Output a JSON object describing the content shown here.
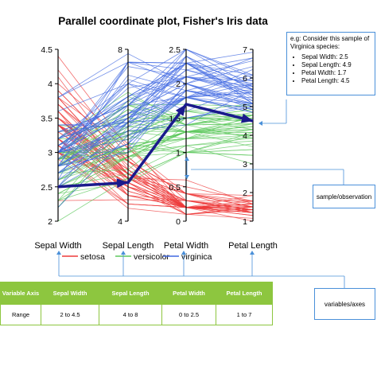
{
  "chart_data": {
    "type": "line",
    "subtype": "parallel-coordinates",
    "title": "Parallel coordinate plot, Fisher's Iris data",
    "axes": [
      {
        "name": "Sepal Width",
        "min": 2,
        "max": 4.5,
        "ticks": [
          "2",
          "2.5",
          "3",
          "3.5",
          "4",
          "4.5"
        ]
      },
      {
        "name": "Sepal Length",
        "min": 4,
        "max": 8,
        "ticks": [
          "4",
          "8"
        ]
      },
      {
        "name": "Petal Width",
        "min": 0,
        "max": 2.5,
        "ticks": [
          "0",
          "0.5",
          "1",
          "1.5",
          "2",
          "2.5"
        ]
      },
      {
        "name": "Petal Length",
        "min": 1,
        "max": 7,
        "ticks": [
          "1",
          "2",
          "3",
          "4",
          "5",
          "6",
          "7"
        ]
      }
    ],
    "series": [
      {
        "name": "setosa",
        "color": "#ee3b3b",
        "values": [
          [
            3.5,
            5.1,
            0.2,
            1.4
          ],
          [
            3.0,
            4.9,
            0.2,
            1.4
          ],
          [
            3.2,
            4.7,
            0.2,
            1.3
          ],
          [
            3.1,
            4.6,
            0.2,
            1.5
          ],
          [
            3.6,
            5.0,
            0.2,
            1.4
          ],
          [
            3.9,
            5.4,
            0.4,
            1.7
          ],
          [
            3.4,
            4.6,
            0.3,
            1.4
          ],
          [
            3.4,
            5.0,
            0.2,
            1.5
          ],
          [
            2.9,
            4.4,
            0.2,
            1.4
          ],
          [
            3.1,
            4.9,
            0.1,
            1.5
          ],
          [
            3.7,
            5.4,
            0.2,
            1.5
          ],
          [
            3.4,
            4.8,
            0.2,
            1.6
          ],
          [
            3.0,
            4.8,
            0.1,
            1.4
          ],
          [
            3.0,
            4.3,
            0.1,
            1.1
          ],
          [
            4.0,
            5.8,
            0.2,
            1.2
          ],
          [
            4.4,
            5.7,
            0.4,
            1.5
          ],
          [
            3.9,
            5.4,
            0.4,
            1.3
          ],
          [
            3.5,
            5.1,
            0.3,
            1.4
          ],
          [
            3.8,
            5.7,
            0.3,
            1.7
          ],
          [
            3.8,
            5.1,
            0.3,
            1.5
          ],
          [
            3.4,
            5.4,
            0.2,
            1.7
          ],
          [
            3.7,
            5.1,
            0.4,
            1.5
          ],
          [
            3.6,
            4.6,
            0.2,
            1.0
          ],
          [
            3.3,
            5.1,
            0.5,
            1.7
          ],
          [
            3.4,
            4.8,
            0.2,
            1.9
          ],
          [
            3.0,
            5.0,
            0.2,
            1.6
          ],
          [
            3.4,
            5.0,
            0.4,
            1.6
          ],
          [
            3.5,
            5.2,
            0.2,
            1.5
          ],
          [
            3.4,
            5.2,
            0.2,
            1.4
          ],
          [
            3.2,
            4.7,
            0.2,
            1.6
          ],
          [
            3.1,
            4.8,
            0.2,
            1.6
          ],
          [
            3.4,
            5.4,
            0.4,
            1.5
          ],
          [
            4.1,
            5.2,
            0.1,
            1.5
          ],
          [
            4.2,
            5.5,
            0.2,
            1.4
          ],
          [
            3.1,
            4.9,
            0.2,
            1.5
          ],
          [
            3.2,
            5.0,
            0.2,
            1.2
          ],
          [
            3.5,
            5.5,
            0.2,
            1.3
          ],
          [
            3.6,
            4.9,
            0.1,
            1.4
          ],
          [
            3.0,
            4.4,
            0.2,
            1.3
          ],
          [
            3.4,
            5.1,
            0.2,
            1.5
          ],
          [
            3.5,
            5.0,
            0.3,
            1.3
          ],
          [
            2.3,
            4.5,
            0.3,
            1.3
          ],
          [
            3.2,
            4.4,
            0.2,
            1.3
          ],
          [
            3.5,
            5.0,
            0.6,
            1.6
          ],
          [
            3.8,
            5.1,
            0.4,
            1.9
          ],
          [
            3.0,
            4.8,
            0.3,
            1.4
          ],
          [
            3.8,
            5.1,
            0.2,
            1.6
          ],
          [
            3.2,
            4.6,
            0.2,
            1.4
          ],
          [
            3.7,
            5.3,
            0.2,
            1.5
          ],
          [
            3.3,
            5.0,
            0.2,
            1.4
          ]
        ]
      },
      {
        "name": "versicolor",
        "color": "#5ec85e",
        "values": [
          [
            3.2,
            7.0,
            1.4,
            4.7
          ],
          [
            3.2,
            6.4,
            1.5,
            4.5
          ],
          [
            3.1,
            6.9,
            1.5,
            4.9
          ],
          [
            2.3,
            5.5,
            1.3,
            4.0
          ],
          [
            2.8,
            6.5,
            1.5,
            4.6
          ],
          [
            2.8,
            5.7,
            1.3,
            4.5
          ],
          [
            3.3,
            6.3,
            1.6,
            4.7
          ],
          [
            2.4,
            4.9,
            1.0,
            3.3
          ],
          [
            2.9,
            6.6,
            1.3,
            4.6
          ],
          [
            2.7,
            5.2,
            1.4,
            3.9
          ],
          [
            2.0,
            5.0,
            1.0,
            3.5
          ],
          [
            3.0,
            5.9,
            1.5,
            4.2
          ],
          [
            2.2,
            6.0,
            1.0,
            4.0
          ],
          [
            2.9,
            6.1,
            1.4,
            4.7
          ],
          [
            2.9,
            5.6,
            1.3,
            3.6
          ],
          [
            3.1,
            6.7,
            1.4,
            4.4
          ],
          [
            3.0,
            5.6,
            1.5,
            4.5
          ],
          [
            2.7,
            5.8,
            1.0,
            4.1
          ],
          [
            2.2,
            6.2,
            1.5,
            4.5
          ],
          [
            2.5,
            5.6,
            1.1,
            3.9
          ],
          [
            3.2,
            5.9,
            1.8,
            4.8
          ],
          [
            2.8,
            6.1,
            1.3,
            4.0
          ],
          [
            2.5,
            6.3,
            1.5,
            4.9
          ],
          [
            2.8,
            6.1,
            1.2,
            4.7
          ],
          [
            2.9,
            6.4,
            1.3,
            4.3
          ],
          [
            3.0,
            6.6,
            1.4,
            4.4
          ],
          [
            2.8,
            6.8,
            1.4,
            4.8
          ],
          [
            3.0,
            6.7,
            1.7,
            5.0
          ],
          [
            2.9,
            6.0,
            1.5,
            4.5
          ],
          [
            2.6,
            5.7,
            1.0,
            3.5
          ],
          [
            2.4,
            5.5,
            1.1,
            3.8
          ],
          [
            2.4,
            5.5,
            1.0,
            3.7
          ],
          [
            2.7,
            5.8,
            1.2,
            3.9
          ],
          [
            2.7,
            6.0,
            1.6,
            5.1
          ],
          [
            3.0,
            5.4,
            1.5,
            4.5
          ],
          [
            3.4,
            6.0,
            1.6,
            4.5
          ],
          [
            3.1,
            6.7,
            1.5,
            4.7
          ],
          [
            2.3,
            6.3,
            1.3,
            4.4
          ],
          [
            3.0,
            5.6,
            1.3,
            4.1
          ],
          [
            2.5,
            5.5,
            1.3,
            4.0
          ],
          [
            2.6,
            5.5,
            1.2,
            4.4
          ],
          [
            3.0,
            6.1,
            1.4,
            4.6
          ],
          [
            2.6,
            5.8,
            1.2,
            4.0
          ],
          [
            2.3,
            5.0,
            1.0,
            3.3
          ],
          [
            2.7,
            5.6,
            1.3,
            4.2
          ],
          [
            3.0,
            5.7,
            1.2,
            4.2
          ],
          [
            2.9,
            5.7,
            1.3,
            4.2
          ],
          [
            2.9,
            6.2,
            1.3,
            4.3
          ],
          [
            2.5,
            5.1,
            1.1,
            3.0
          ],
          [
            2.8,
            5.7,
            1.3,
            4.1
          ]
        ]
      },
      {
        "name": "virginica",
        "color": "#4169e1",
        "values": [
          [
            3.3,
            6.3,
            2.5,
            6.0
          ],
          [
            2.7,
            5.8,
            1.9,
            5.1
          ],
          [
            3.0,
            7.1,
            2.1,
            5.9
          ],
          [
            2.9,
            6.3,
            1.8,
            5.6
          ],
          [
            3.0,
            6.5,
            2.2,
            5.8
          ],
          [
            3.0,
            7.6,
            2.1,
            6.6
          ],
          [
            2.5,
            4.9,
            1.7,
            4.5
          ],
          [
            2.9,
            7.3,
            1.8,
            6.3
          ],
          [
            2.5,
            6.7,
            1.8,
            5.8
          ],
          [
            3.6,
            7.2,
            2.5,
            6.1
          ],
          [
            3.2,
            6.5,
            2.0,
            5.1
          ],
          [
            2.7,
            6.4,
            1.9,
            5.3
          ],
          [
            3.0,
            6.8,
            2.1,
            5.5
          ],
          [
            2.5,
            5.7,
            2.0,
            5.0
          ],
          [
            2.8,
            5.8,
            2.4,
            5.1
          ],
          [
            3.2,
            6.4,
            2.3,
            5.3
          ],
          [
            3.0,
            6.5,
            1.8,
            5.5
          ],
          [
            3.8,
            7.7,
            2.2,
            6.7
          ],
          [
            2.6,
            7.7,
            2.3,
            6.9
          ],
          [
            2.2,
            6.0,
            1.5,
            5.0
          ],
          [
            3.2,
            6.9,
            2.3,
            5.7
          ],
          [
            2.8,
            5.6,
            2.0,
            4.9
          ],
          [
            2.8,
            7.7,
            2.0,
            6.7
          ],
          [
            2.7,
            6.3,
            1.8,
            4.9
          ],
          [
            3.3,
            6.7,
            2.1,
            5.7
          ],
          [
            3.2,
            7.2,
            1.8,
            6.0
          ],
          [
            2.8,
            6.2,
            1.8,
            4.8
          ],
          [
            3.0,
            6.1,
            1.8,
            4.9
          ],
          [
            2.8,
            6.4,
            2.1,
            5.6
          ],
          [
            3.0,
            7.2,
            1.6,
            5.8
          ],
          [
            2.8,
            7.4,
            1.9,
            6.1
          ],
          [
            3.8,
            7.9,
            2.0,
            6.4
          ],
          [
            2.8,
            6.4,
            2.2,
            5.6
          ],
          [
            2.8,
            6.3,
            1.5,
            5.1
          ],
          [
            2.6,
            6.1,
            1.4,
            5.6
          ],
          [
            3.0,
            7.7,
            2.3,
            6.1
          ],
          [
            3.4,
            6.3,
            2.4,
            5.6
          ],
          [
            3.1,
            6.4,
            1.8,
            5.5
          ],
          [
            3.0,
            6.0,
            1.8,
            4.8
          ],
          [
            3.1,
            6.9,
            2.1,
            5.4
          ],
          [
            3.1,
            6.7,
            2.4,
            5.6
          ],
          [
            3.1,
            6.9,
            2.3,
            5.1
          ],
          [
            2.7,
            5.8,
            1.9,
            5.1
          ],
          [
            3.2,
            6.8,
            2.3,
            5.9
          ],
          [
            3.3,
            6.7,
            2.5,
            5.7
          ],
          [
            3.0,
            6.7,
            2.3,
            5.2
          ],
          [
            2.5,
            6.3,
            1.9,
            5.0
          ],
          [
            3.0,
            6.5,
            2.0,
            5.2
          ],
          [
            3.4,
            6.2,
            2.3,
            5.4
          ],
          [
            3.0,
            5.9,
            1.8,
            5.1
          ]
        ]
      }
    ],
    "highlight": {
      "label": "sample",
      "values": [
        2.5,
        4.9,
        1.7,
        4.5
      ],
      "color": "#1a1a8c"
    },
    "legend": {
      "placement": "bottom",
      "entries": [
        "setosa",
        "versicolor",
        "virginica"
      ]
    }
  },
  "callouts": {
    "sample": {
      "intro": "e.g: Consider this sample of Virginica species:",
      "items": [
        "Sepal Width: 2.5",
        "Sepal Length: 4.9",
        "Petal Width: 1.7",
        "Petal Length: 4.5"
      ]
    },
    "observation": "sample/observation",
    "axes": "variables/axes"
  },
  "table": {
    "header_first": "Variable Axis",
    "range_label": "Range",
    "columns": [
      {
        "name": "Sepal Width",
        "range": "2 to 4.5"
      },
      {
        "name": "Sepal Length",
        "range": "4 to 8"
      },
      {
        "name": "Petal Width",
        "range": "0 to 2.5"
      },
      {
        "name": "Petal Length",
        "range": "1 to 7"
      }
    ]
  },
  "colors": {
    "accent": "#4a90d9",
    "table_header": "#8dc63f"
  }
}
